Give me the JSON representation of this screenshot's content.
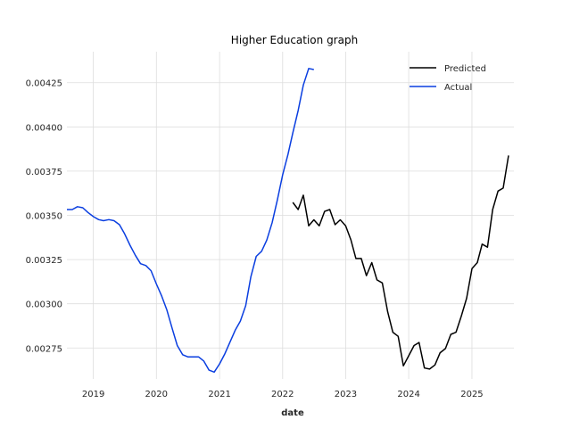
{
  "chart_data": {
    "type": "line",
    "title": "Higher Education graph",
    "xlabel": "date",
    "ylabel": "",
    "xlim": [
      "2018-08-01",
      "2025-09-01"
    ],
    "ylim": [
      0.002575,
      0.004425
    ],
    "x_ticks": [
      "2019",
      "2020",
      "2021",
      "2022",
      "2023",
      "2024",
      "2025"
    ],
    "y_ticks": [
      "0.00275",
      "0.00300",
      "0.00325",
      "0.00350",
      "0.00375",
      "0.00400",
      "0.00425"
    ],
    "y_tick_values": [
      0.00275,
      0.003,
      0.00325,
      0.0035,
      0.00375,
      0.004,
      0.00425
    ],
    "grid": true,
    "legend": "top-right",
    "series": [
      {
        "name": "Predicted",
        "color": "#000000",
        "points": [
          [
            "2022-03-01",
            0.003573
          ],
          [
            "2022-04-01",
            0.003533
          ],
          [
            "2022-05-01",
            0.003614
          ],
          [
            "2022-06-01",
            0.003441
          ],
          [
            "2022-07-01",
            0.003475
          ],
          [
            "2022-08-01",
            0.003441
          ],
          [
            "2022-09-01",
            0.003522
          ],
          [
            "2022-10-01",
            0.003533
          ],
          [
            "2022-11-01",
            0.003447
          ],
          [
            "2022-12-01",
            0.003475
          ],
          [
            "2023-01-01",
            0.003441
          ],
          [
            "2023-02-01",
            0.00336
          ],
          [
            "2023-03-01",
            0.003256
          ],
          [
            "2023-04-01",
            0.003256
          ],
          [
            "2023-05-01",
            0.003159
          ],
          [
            "2023-06-01",
            0.003233
          ],
          [
            "2023-07-01",
            0.003135
          ],
          [
            "2023-08-01",
            0.003118
          ],
          [
            "2023-09-01",
            0.002955
          ],
          [
            "2023-10-01",
            0.002839
          ],
          [
            "2023-11-01",
            0.002816
          ],
          [
            "2023-12-01",
            0.002649
          ],
          [
            "2024-01-01",
            0.002706
          ],
          [
            "2024-02-01",
            0.002764
          ],
          [
            "2024-03-01",
            0.002781
          ],
          [
            "2024-04-01",
            0.002637
          ],
          [
            "2024-05-01",
            0.002631
          ],
          [
            "2024-06-01",
            0.002654
          ],
          [
            "2024-07-01",
            0.002723
          ],
          [
            "2024-08-01",
            0.002747
          ],
          [
            "2024-09-01",
            0.002827
          ],
          [
            "2024-10-01",
            0.002839
          ],
          [
            "2024-11-01",
            0.002931
          ],
          [
            "2024-12-01",
            0.003031
          ],
          [
            "2025-01-01",
            0.003199
          ],
          [
            "2025-02-01",
            0.003233
          ],
          [
            "2025-03-01",
            0.003337
          ],
          [
            "2025-04-01",
            0.00332
          ],
          [
            "2025-05-01",
            0.003533
          ],
          [
            "2025-06-01",
            0.003637
          ],
          [
            "2025-07-01",
            0.003654
          ],
          [
            "2025-08-01",
            0.003838
          ]
        ]
      },
      {
        "name": "Actual",
        "color": "#0a3ee0",
        "points": [
          [
            "2018-08-01",
            0.003533
          ],
          [
            "2018-09-01",
            0.003533
          ],
          [
            "2018-10-01",
            0.003549
          ],
          [
            "2018-11-01",
            0.003543
          ],
          [
            "2018-12-01",
            0.003516
          ],
          [
            "2019-01-01",
            0.003493
          ],
          [
            "2019-02-01",
            0.003476
          ],
          [
            "2019-03-01",
            0.00347
          ],
          [
            "2019-04-01",
            0.003476
          ],
          [
            "2019-05-01",
            0.00347
          ],
          [
            "2019-06-01",
            0.003447
          ],
          [
            "2019-07-01",
            0.003395
          ],
          [
            "2019-08-01",
            0.003331
          ],
          [
            "2019-09-01",
            0.003274
          ],
          [
            "2019-10-01",
            0.003227
          ],
          [
            "2019-11-01",
            0.003216
          ],
          [
            "2019-12-01",
            0.003187
          ],
          [
            "2020-01-01",
            0.003112
          ],
          [
            "2020-02-01",
            0.003043
          ],
          [
            "2020-03-01",
            0.002967
          ],
          [
            "2020-04-01",
            0.002862
          ],
          [
            "2020-05-01",
            0.002764
          ],
          [
            "2020-06-01",
            0.002712
          ],
          [
            "2020-07-01",
            0.0027
          ],
          [
            "2020-08-01",
            0.0027
          ],
          [
            "2020-09-01",
            0.0027
          ],
          [
            "2020-10-01",
            0.002677
          ],
          [
            "2020-11-01",
            0.002625
          ],
          [
            "2020-12-01",
            0.002614
          ],
          [
            "2021-01-01",
            0.00266
          ],
          [
            "2021-02-01",
            0.002718
          ],
          [
            "2021-03-01",
            0.002781
          ],
          [
            "2021-04-01",
            0.00285
          ],
          [
            "2021-05-01",
            0.002902
          ],
          [
            "2021-06-01",
            0.00299
          ],
          [
            "2021-07-01",
            0.003153
          ],
          [
            "2021-08-01",
            0.003268
          ],
          [
            "2021-09-01",
            0.003297
          ],
          [
            "2021-10-01",
            0.00336
          ],
          [
            "2021-11-01",
            0.003458
          ],
          [
            "2021-12-01",
            0.003585
          ],
          [
            "2022-01-01",
            0.003729
          ],
          [
            "2022-02-01",
            0.003845
          ],
          [
            "2022-03-01",
            0.003966
          ],
          [
            "2022-04-01",
            0.004093
          ],
          [
            "2022-05-01",
            0.004237
          ],
          [
            "2022-06-01",
            0.00433
          ],
          [
            "2022-07-01",
            0.004324
          ]
        ]
      }
    ]
  }
}
